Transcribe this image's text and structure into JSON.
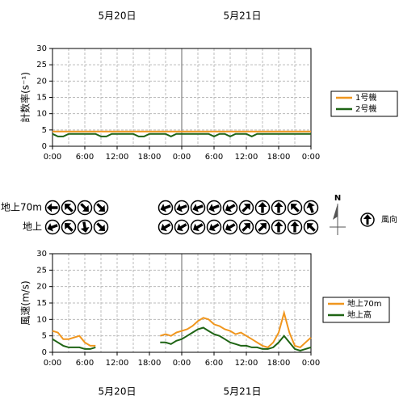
{
  "dates": [
    "5月20日",
    "5月21日"
  ],
  "chart_data": [
    {
      "type": "line",
      "ylabel": "計数率(s⁻¹)",
      "xlim": [
        0,
        48
      ],
      "ylim": [
        0,
        30
      ],
      "yticks": [
        0,
        5,
        10,
        15,
        20,
        25,
        30
      ],
      "xticks": [
        {
          "value": 0,
          "label": "0:00"
        },
        {
          "value": 6,
          "label": "6:00"
        },
        {
          "value": 12,
          "label": "12:00"
        },
        {
          "value": 18,
          "label": "18:00"
        },
        {
          "value": 24,
          "label": "0:00"
        },
        {
          "value": 30,
          "label": "6:00"
        },
        {
          "value": 36,
          "label": "12:00"
        },
        {
          "value": 42,
          "label": "18:00"
        },
        {
          "value": 48,
          "label": "0:00"
        }
      ],
      "xgrid": [
        3,
        9,
        15,
        21,
        27,
        33,
        39,
        45
      ],
      "day_line": 24,
      "grid": true,
      "x": [
        0,
        1,
        2,
        3,
        4,
        5,
        6,
        7,
        8,
        9,
        10,
        11,
        12,
        13,
        14,
        15,
        16,
        17,
        18,
        19,
        20,
        21,
        22,
        23,
        24,
        25,
        26,
        27,
        28,
        29,
        30,
        31,
        32,
        33,
        34,
        35,
        36,
        37,
        38,
        39,
        40,
        41,
        42,
        43,
        44,
        45,
        46,
        47,
        48
      ],
      "series": [
        {
          "name": "1号機",
          "color": "#f0961e",
          "values": [
            4.5,
            4.5,
            4.5,
            4.5,
            4.5,
            4.5,
            4.5,
            4.5,
            4.5,
            4.5,
            4.5,
            4.5,
            4.5,
            4.5,
            4.5,
            4.5,
            4.5,
            4.5,
            4.5,
            4.5,
            4.5,
            4.5,
            4.5,
            4.5,
            4.5,
            4.5,
            4.5,
            4.5,
            4.5,
            4.5,
            4.5,
            4.5,
            4.5,
            4.5,
            4.5,
            4.5,
            4.5,
            4.5,
            4.5,
            4.5,
            4.5,
            4.5,
            4.5,
            4.5,
            4.5,
            4.5,
            4.5,
            4.5,
            4.5
          ]
        },
        {
          "name": "2号機",
          "color": "#1e6414",
          "values": [
            3.8,
            3,
            3,
            3.8,
            3.8,
            3.8,
            3.8,
            3.8,
            3.8,
            3,
            3,
            3.8,
            3.8,
            3.8,
            3.8,
            3.8,
            3,
            3,
            3.8,
            3.8,
            3.8,
            3.8,
            3,
            3.8,
            3.8,
            3.8,
            3.8,
            3.8,
            3.8,
            3.8,
            3,
            3.8,
            3.8,
            3,
            3.8,
            3.8,
            3.8,
            3,
            3.8,
            3.8,
            3.8,
            3.8,
            3.8,
            3.8,
            3.8,
            3.8,
            3.8,
            3.8,
            3.8
          ]
        }
      ]
    },
    {
      "type": "line",
      "ylabel": "風速(m/s)",
      "xlim": [
        0,
        48
      ],
      "ylim": [
        0,
        30
      ],
      "yticks": [
        0,
        5,
        10,
        15,
        20,
        25,
        30
      ],
      "xticks": [
        {
          "value": 0,
          "label": "0:00"
        },
        {
          "value": 6,
          "label": "6:00"
        },
        {
          "value": 12,
          "label": "12:00"
        },
        {
          "value": 18,
          "label": "18:00"
        },
        {
          "value": 24,
          "label": "0:00"
        },
        {
          "value": 30,
          "label": "6:00"
        },
        {
          "value": 36,
          "label": "12:00"
        },
        {
          "value": 42,
          "label": "18:00"
        },
        {
          "value": 48,
          "label": "0:00"
        }
      ],
      "xgrid": [
        3,
        9,
        15,
        21,
        27,
        33,
        39,
        45
      ],
      "day_line": 24,
      "grid": true,
      "x": [
        0,
        1,
        2,
        3,
        4,
        5,
        6,
        7,
        8,
        9,
        10,
        11,
        12,
        13,
        14,
        15,
        16,
        17,
        18,
        19,
        20,
        21,
        22,
        23,
        24,
        25,
        26,
        27,
        28,
        29,
        30,
        31,
        32,
        33,
        34,
        35,
        36,
        37,
        38,
        39,
        40,
        41,
        42,
        43,
        44,
        45,
        46,
        47,
        48
      ],
      "series": [
        {
          "name": "地上70m",
          "color": "#f0961e",
          "values": [
            6.5,
            6,
            4,
            4,
            4.5,
            5,
            3,
            2,
            2,
            null,
            null,
            null,
            null,
            null,
            null,
            null,
            null,
            null,
            null,
            null,
            5,
            5.5,
            5,
            6,
            6.5,
            7,
            8,
            9.5,
            10.5,
            10,
            8.5,
            8,
            7,
            6.5,
            5.5,
            6,
            5,
            4,
            3,
            2,
            1.5,
            3,
            6,
            12,
            6,
            2,
            1.5,
            3,
            4.5
          ]
        },
        {
          "name": "地上高",
          "color": "#1e6414",
          "values": [
            4,
            3,
            2,
            1.5,
            1.5,
            1.5,
            1,
            1,
            1.5,
            null,
            null,
            null,
            null,
            null,
            null,
            null,
            null,
            null,
            null,
            null,
            3,
            3,
            2.5,
            3.5,
            4,
            5,
            6,
            7,
            7.5,
            6.5,
            5.5,
            5,
            4,
            3,
            2.5,
            2,
            2,
            1.5,
            1.5,
            1,
            1,
            1.5,
            3,
            5,
            3,
            1,
            0.5,
            1,
            1.5
          ]
        }
      ]
    }
  ],
  "wind": {
    "north": "N",
    "legend": "風向",
    "rows": [
      {
        "label": "地上70m",
        "groups": [
          [
            270,
            315,
            135,
            135
          ],
          [
            250,
            250,
            250,
            250,
            240,
            45,
            0,
            0,
            315,
            340
          ]
        ]
      },
      {
        "label": "地上",
        "groups": [
          [
            250,
            315,
            170,
            135
          ],
          [
            240,
            240,
            240,
            240,
            240,
            45,
            45,
            0,
            0,
            315
          ]
        ]
      }
    ]
  }
}
